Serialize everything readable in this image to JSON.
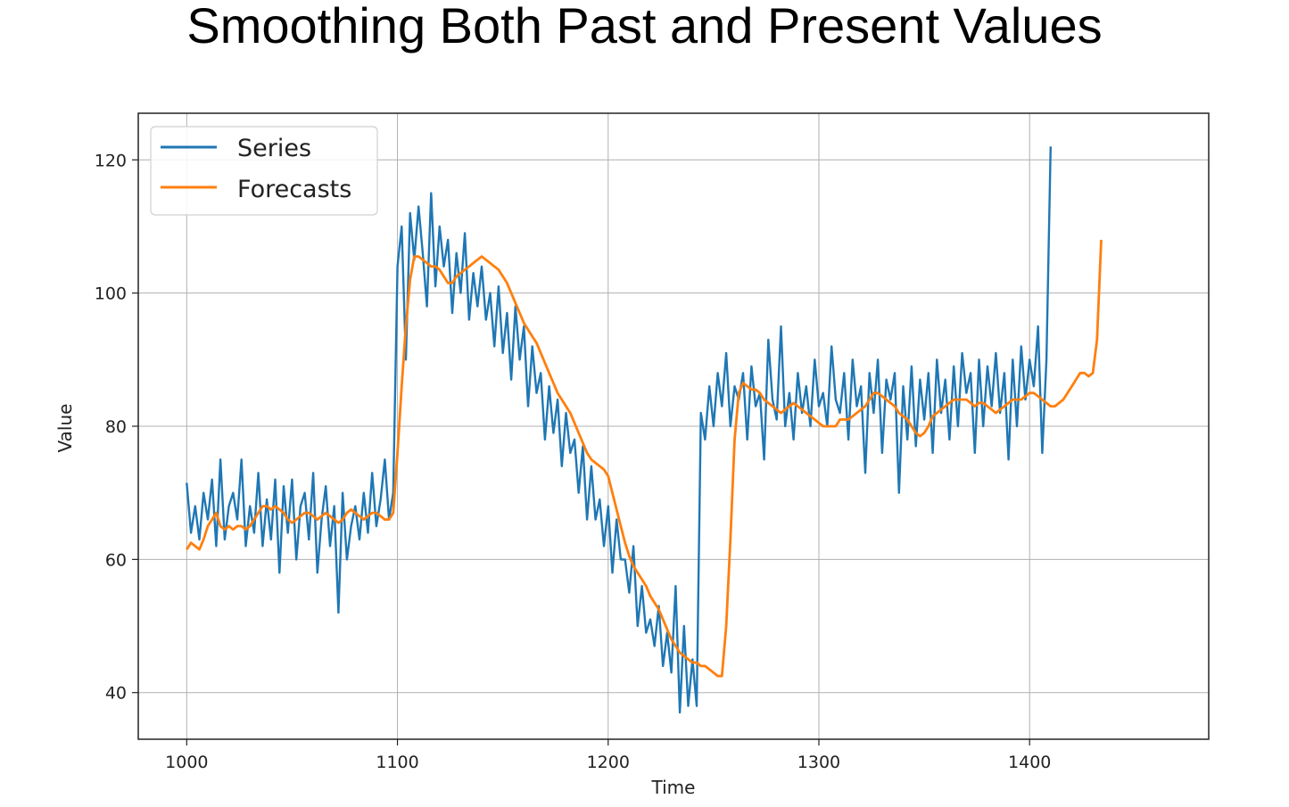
{
  "title": "Smoothing Both Past and Present Values",
  "colors": {
    "series": "#1f77b4",
    "forecasts": "#ff7f0e",
    "grid": "#b0b0b0"
  },
  "chart_data": {
    "type": "line",
    "title": "",
    "xlabel": "Time",
    "ylabel": "Value",
    "xlim": [
      977,
      1485
    ],
    "ylim": [
      33,
      127
    ],
    "xticks": [
      1000,
      1100,
      1200,
      1300,
      1400
    ],
    "yticks": [
      40,
      60,
      80,
      100,
      120
    ],
    "grid": true,
    "legend_position": "upper-left",
    "series": [
      {
        "name": "Series",
        "color": "#1f77b4",
        "x_start": 1000,
        "step": 2,
        "values": [
          71.5,
          64,
          68,
          63,
          70,
          66,
          72,
          62,
          75,
          63,
          68,
          70,
          66,
          75,
          62,
          68,
          64,
          73,
          62,
          69,
          63,
          72,
          58,
          71,
          64,
          72,
          60,
          68,
          70,
          63,
          73,
          58,
          66,
          71,
          62,
          68,
          52,
          70,
          60,
          65,
          68,
          63,
          70,
          64,
          73,
          65,
          69,
          75,
          66,
          70,
          104,
          110,
          90,
          112,
          105,
          113,
          106,
          98,
          115,
          101,
          110,
          104,
          108,
          97,
          106,
          100,
          109,
          96,
          103,
          98,
          104,
          96,
          100,
          92,
          101,
          91,
          97,
          87,
          98,
          90,
          95,
          83,
          92,
          85,
          88,
          78,
          86,
          79,
          84,
          74,
          82,
          76,
          78,
          70,
          77,
          66,
          74,
          66,
          69,
          62,
          68,
          58,
          66,
          60,
          60,
          55,
          62,
          50,
          56,
          49,
          51,
          47,
          53,
          44,
          49,
          43,
          56,
          37,
          50,
          38,
          45,
          38,
          82,
          78,
          86,
          80,
          88,
          83,
          91,
          80,
          86,
          84,
          88,
          78,
          89,
          83,
          85,
          75,
          93,
          84,
          81,
          95,
          80,
          85,
          78,
          88,
          82,
          86,
          80,
          90,
          83,
          85,
          80,
          92,
          84,
          82,
          88,
          78,
          90,
          83,
          86,
          73,
          88,
          82,
          90,
          76,
          87,
          84,
          88,
          70,
          86,
          78,
          89,
          77,
          87,
          81,
          88,
          76,
          90,
          82,
          87,
          78,
          89,
          80,
          91,
          85,
          88,
          76,
          90,
          80,
          89,
          83,
          91,
          82,
          88,
          75,
          90,
          80,
          92,
          84,
          90,
          86,
          95,
          76,
          90,
          122
        ]
      },
      {
        "name": "Forecasts",
        "color": "#ff7f0e",
        "x_start": 1000,
        "step": 2,
        "values": [
          61.5,
          62.5,
          62,
          61.5,
          63,
          65,
          66,
          67,
          65,
          64.5,
          65,
          64.5,
          65,
          65,
          64.5,
          65,
          66,
          67,
          68,
          68,
          67.5,
          68,
          67.5,
          67,
          66,
          65.5,
          66,
          66.5,
          67,
          67,
          66.5,
          66,
          66.5,
          67,
          66.5,
          66,
          65.5,
          66,
          67,
          67.5,
          67,
          66.5,
          66,
          66.5,
          67,
          67,
          66.5,
          66,
          66,
          67,
          76,
          86,
          95,
          102,
          105.5,
          105.5,
          105,
          104.5,
          104,
          104,
          103.5,
          102.5,
          101.5,
          101.5,
          102.5,
          103,
          103.5,
          104,
          104.5,
          105,
          105.5,
          105,
          104.5,
          104,
          103.5,
          102.5,
          101.5,
          100,
          98.5,
          97,
          95.5,
          94.5,
          93.5,
          92.5,
          91,
          89.5,
          88,
          86.5,
          85,
          84,
          83,
          82,
          80.5,
          79,
          77.5,
          76,
          75,
          74.5,
          74,
          73.5,
          72.5,
          70,
          67.5,
          65,
          62.5,
          60.5,
          59,
          58,
          57,
          56,
          54.5,
          53.5,
          52.5,
          51,
          49.5,
          48,
          47,
          46,
          45.5,
          45,
          44.5,
          44.5,
          44,
          44,
          43.5,
          43,
          42.5,
          42.5,
          50,
          63,
          78,
          85,
          86.5,
          86,
          85.5,
          85.5,
          85,
          84,
          83.5,
          83,
          82.5,
          82,
          82.5,
          83,
          83.5,
          83,
          82.5,
          82,
          81.5,
          81,
          80.5,
          80,
          80,
          80,
          80,
          81,
          81,
          81,
          81.5,
          82,
          82.5,
          83,
          84,
          85,
          85,
          84.5,
          84,
          83.5,
          83,
          82,
          81.5,
          81,
          80,
          79,
          78.5,
          79,
          80,
          81.5,
          82,
          82.5,
          83,
          83.5,
          84,
          84,
          84,
          84,
          83.5,
          83,
          83.5,
          83.5,
          83,
          82.5,
          82,
          82.5,
          83,
          83.5,
          84,
          84,
          84,
          84.5,
          85,
          85,
          84.5,
          84,
          83.5,
          83,
          83,
          83.5,
          84,
          85,
          86,
          87,
          88,
          88,
          87.5,
          88,
          93,
          108
        ]
      }
    ]
  }
}
